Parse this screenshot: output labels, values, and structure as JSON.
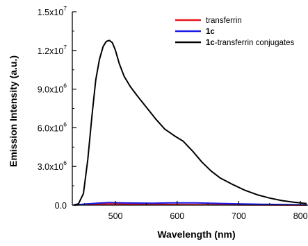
{
  "chart_data": {
    "type": "line",
    "xlabel": "Wavelength (nm)",
    "ylabel": "Emission Intensity (a.u.)",
    "xlim": [
      430,
      810
    ],
    "ylim": [
      0,
      15000000
    ],
    "x_ticks": [
      {
        "value": 500,
        "label": "500"
      },
      {
        "value": 600,
        "label": "600"
      },
      {
        "value": 700,
        "label": "700"
      },
      {
        "value": 800,
        "label": "800"
      }
    ],
    "y_ticks": [
      {
        "value": 0,
        "mantissa": "0.0",
        "exp": ""
      },
      {
        "value": 3000000,
        "mantissa": "3.0x10",
        "exp": "6"
      },
      {
        "value": 6000000,
        "mantissa": "6.0x10",
        "exp": "6"
      },
      {
        "value": 9000000,
        "mantissa": "9.0x10",
        "exp": "6"
      },
      {
        "value": 12000000,
        "mantissa": "1.2x10",
        "exp": "7"
      },
      {
        "value": 15000000,
        "mantissa": "1.5x10",
        "exp": "7"
      }
    ],
    "legend_placement": "top-right",
    "legend": [
      {
        "prefix": "",
        "text": "transferrin",
        "color": "#e8141b"
      },
      {
        "prefix": "1c",
        "text": "",
        "color": "#1a1ae6"
      },
      {
        "prefix": "1c",
        "text": "-transferrin conjugates",
        "color": "#000000"
      }
    ],
    "series": [
      {
        "name": "transferrin",
        "color": "#e8141b",
        "points": [
          [
            432,
            0
          ],
          [
            450,
            40000
          ],
          [
            470,
            70000
          ],
          [
            490,
            90000
          ],
          [
            510,
            80000
          ],
          [
            540,
            70000
          ],
          [
            570,
            60000
          ],
          [
            600,
            50000
          ],
          [
            630,
            40000
          ],
          [
            660,
            30000
          ],
          [
            700,
            20000
          ],
          [
            740,
            10000
          ],
          [
            780,
            5000
          ],
          [
            810,
            0
          ]
        ]
      },
      {
        "name": "1c",
        "color": "#1a1ae6",
        "points": [
          [
            432,
            0
          ],
          [
            450,
            80000
          ],
          [
            470,
            150000
          ],
          [
            490,
            200000
          ],
          [
            510,
            170000
          ],
          [
            530,
            160000
          ],
          [
            560,
            150000
          ],
          [
            590,
            170000
          ],
          [
            610,
            180000
          ],
          [
            630,
            170000
          ],
          [
            660,
            140000
          ],
          [
            690,
            110000
          ],
          [
            720,
            80000
          ],
          [
            750,
            60000
          ],
          [
            780,
            40000
          ],
          [
            810,
            10000
          ]
        ]
      },
      {
        "name": "1c-transferrin conjugates",
        "color": "#000000",
        "points": [
          [
            432,
            0
          ],
          [
            440,
            100000
          ],
          [
            448,
            900000
          ],
          [
            455,
            3500000
          ],
          [
            462,
            7000000
          ],
          [
            468,
            9700000
          ],
          [
            474,
            11300000
          ],
          [
            480,
            12300000
          ],
          [
            485,
            12700000
          ],
          [
            490,
            12780000
          ],
          [
            495,
            12600000
          ],
          [
            500,
            12000000
          ],
          [
            506,
            11000000
          ],
          [
            514,
            10000000
          ],
          [
            524,
            9200000
          ],
          [
            535,
            8500000
          ],
          [
            550,
            7600000
          ],
          [
            565,
            6700000
          ],
          [
            580,
            5900000
          ],
          [
            595,
            5400000
          ],
          [
            610,
            4950000
          ],
          [
            625,
            4200000
          ],
          [
            640,
            3350000
          ],
          [
            655,
            2650000
          ],
          [
            670,
            2100000
          ],
          [
            690,
            1600000
          ],
          [
            710,
            1150000
          ],
          [
            730,
            800000
          ],
          [
            750,
            550000
          ],
          [
            770,
            350000
          ],
          [
            790,
            220000
          ],
          [
            810,
            120000
          ]
        ]
      }
    ]
  }
}
